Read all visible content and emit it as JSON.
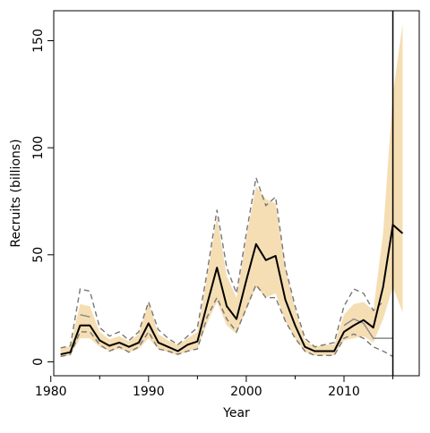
{
  "chart_data": {
    "type": "line",
    "title": "",
    "xlabel": "Year",
    "ylabel": "Recruits (billions)",
    "xlim": [
      1980.3,
      2017.7
    ],
    "ylim": [
      -6.5,
      164
    ],
    "x_ticks": [
      1980,
      1990,
      2000,
      2010
    ],
    "x_tick_labels": [
      "1980",
      "1990",
      "2000",
      "2010"
    ],
    "x_minor_ticks": [
      1985,
      1995,
      2005,
      2015
    ],
    "y_ticks": [
      0,
      50,
      100,
      150
    ],
    "y_tick_labels": [
      "0",
      "50",
      "100",
      "150"
    ],
    "grid": false,
    "legend": "none",
    "vertical_line_x": 2015,
    "colors": {
      "band": "#f5deb3",
      "median": "#000000",
      "dashed": "#777777",
      "grey_line": "#888888"
    },
    "x": [
      1981,
      1982,
      1983,
      1984,
      1985,
      1986,
      1987,
      1988,
      1989,
      1990,
      1991,
      1992,
      1993,
      1994,
      1995,
      1996,
      1997,
      1998,
      1999,
      2000,
      2001,
      2002,
      2003,
      2004,
      2005,
      2006,
      2007,
      2008,
      2009,
      2010,
      2011,
      2012,
      2013,
      2014,
      2015,
      2016
    ],
    "series": [
      {
        "role": "median",
        "values": [
          3.5,
          4.5,
          17,
          17,
          10,
          7.5,
          9,
          7,
          9,
          18,
          9,
          7,
          5,
          8,
          9.5,
          27,
          44,
          26,
          20,
          38,
          55,
          47.5,
          49.5,
          29,
          17,
          7,
          5,
          5,
          5,
          14,
          17,
          19.5,
          16,
          35,
          64,
          60
        ]
      },
      {
        "role": "band_upper",
        "values": [
          6,
          7.5,
          27,
          26,
          14,
          10.5,
          12,
          9.5,
          13,
          28,
          13,
          10,
          8,
          11,
          14,
          40,
          68,
          40,
          30,
          58,
          82,
          76,
          74,
          44,
          25,
          10,
          7,
          8,
          8,
          22,
          27,
          28,
          24,
          60,
          125,
          158
        ]
      },
      {
        "role": "band_lower",
        "values": [
          2.2,
          3,
          11,
          11,
          7,
          5,
          6,
          4.5,
          6,
          11,
          6,
          4.5,
          3,
          5,
          6,
          18,
          28,
          17,
          13,
          24,
          35,
          30,
          32,
          19,
          11,
          4.5,
          3,
          3,
          3,
          10,
          11,
          12,
          9,
          20,
          35,
          23
        ]
      },
      {
        "role": "dashed_upper",
        "values": [
          6.5,
          7.5,
          34,
          33,
          16,
          12,
          14,
          10,
          14,
          28,
          15,
          11,
          8,
          12,
          16,
          42,
          71,
          44,
          32,
          60,
          86,
          73,
          77,
          44,
          26,
          11,
          7,
          8,
          9,
          26,
          34,
          32,
          24,
          28,
          null,
          null
        ]
      },
      {
        "role": "dashed_lower",
        "values": [
          2.5,
          3.5,
          14,
          14,
          8,
          5,
          7,
          4.5,
          7,
          14,
          6,
          5,
          3.5,
          5,
          6,
          21,
          30,
          20,
          14,
          25,
          36,
          30,
          30,
          19,
          11,
          5,
          3,
          3,
          3,
          11,
          13,
          11,
          7,
          5,
          2.5,
          null
        ]
      },
      {
        "role": "grey_upper",
        "values": [
          null,
          null,
          22,
          21,
          null,
          null,
          null,
          null,
          null,
          null,
          null,
          null,
          null,
          null,
          null,
          null,
          null,
          null,
          null,
          null,
          null,
          null,
          null,
          null,
          null,
          null,
          null,
          null,
          null,
          17,
          20,
          18,
          11,
          11,
          11,
          null
        ]
      }
    ]
  }
}
